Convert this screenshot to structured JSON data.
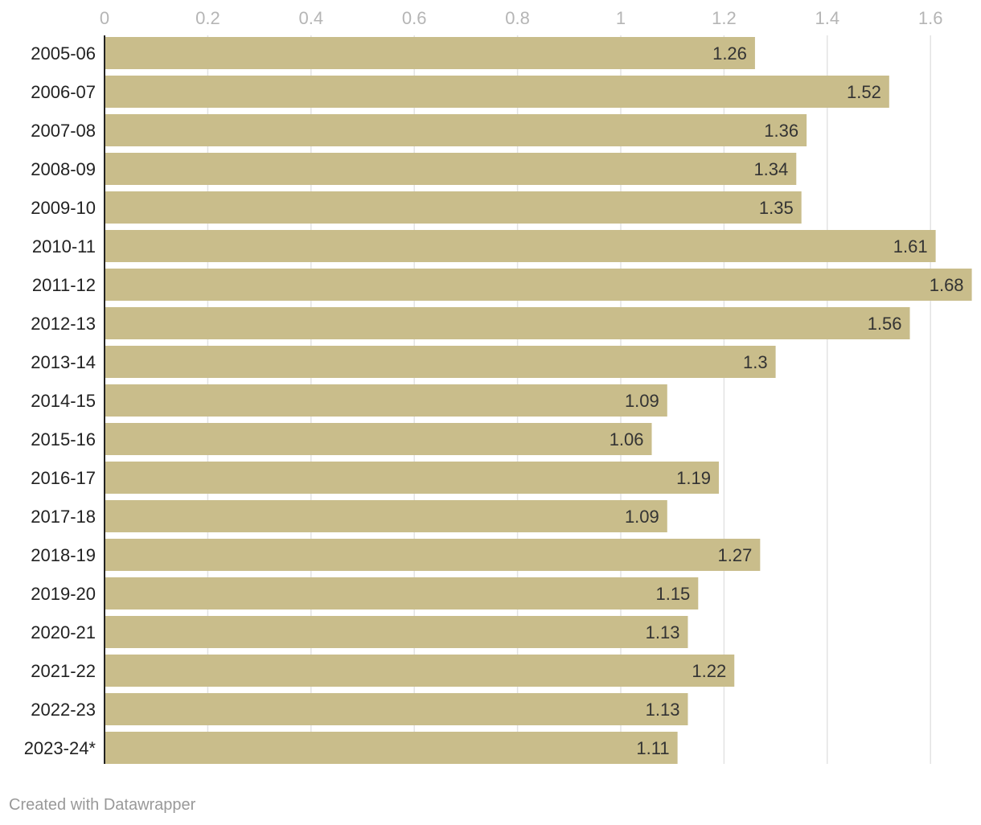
{
  "chart_data": {
    "type": "bar",
    "orientation": "horizontal",
    "categories": [
      "2005-06",
      "2006-07",
      "2007-08",
      "2008-09",
      "2009-10",
      "2010-11",
      "2011-12",
      "2012-13",
      "2013-14",
      "2014-15",
      "2015-16",
      "2016-17",
      "2017-18",
      "2018-19",
      "2019-20",
      "2020-21",
      "2021-22",
      "2022-23",
      "2023-24*"
    ],
    "values": [
      1.26,
      1.52,
      1.36,
      1.34,
      1.35,
      1.61,
      1.68,
      1.56,
      1.3,
      1.09,
      1.06,
      1.19,
      1.09,
      1.27,
      1.15,
      1.13,
      1.22,
      1.13,
      1.11
    ],
    "value_labels": [
      "1.26",
      "1.52",
      "1.36",
      "1.34",
      "1.35",
      "1.61",
      "1.68",
      "1.56",
      "1.3",
      "1.09",
      "1.06",
      "1.19",
      "1.09",
      "1.27",
      "1.15",
      "1.13",
      "1.22",
      "1.13",
      "1.11"
    ],
    "ticks": [
      0,
      0.2,
      0.4,
      0.6,
      0.8,
      1,
      1.2,
      1.4,
      1.6
    ],
    "tick_labels": [
      "0",
      "0.2",
      "0.4",
      "0.6",
      "0.8",
      "1",
      "1.2",
      "1.4",
      "1.6"
    ],
    "xlim": [
      0,
      1.68
    ],
    "title": "",
    "xlabel": "",
    "ylabel": "",
    "grid": true,
    "legend": "none",
    "bar_color": "#c9bd8b"
  },
  "footer": {
    "credit": "Created with Datawrapper"
  }
}
